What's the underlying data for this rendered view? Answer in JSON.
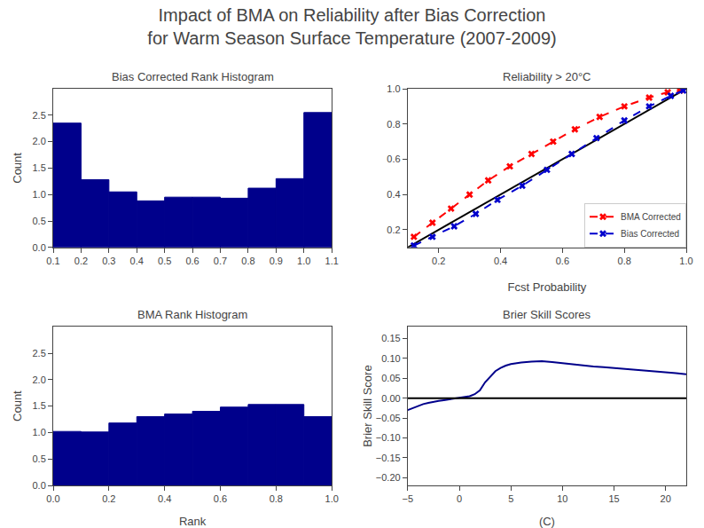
{
  "title": "Impact of BMA on Reliability after Bias Correction\nfor Warm Season Surface Temperature (2007-2009)",
  "chart_data": [
    {
      "type": "histogram",
      "title": "Bias Corrected Rank Histogram",
      "ylabel": "Count",
      "bins": [
        0.1,
        0.2,
        0.3,
        0.4,
        0.5,
        0.6,
        0.7,
        0.8,
        0.9,
        1.0,
        1.1
      ],
      "values": [
        2.35,
        1.28,
        1.05,
        0.88,
        0.95,
        0.95,
        0.93,
        1.12,
        1.3,
        2.55
      ],
      "color": "#00008B",
      "xlim": [
        0.1,
        1.1
      ],
      "ylim": [
        0,
        3.0
      ],
      "xticks": [
        0.1,
        0.2,
        0.3,
        0.4,
        0.5,
        0.6,
        0.7,
        0.8,
        0.9,
        {
          "value": 1.0,
          "label": "1.0"
        },
        1.1
      ],
      "yticks": [
        {
          "value": 0,
          "label": "0.0"
        },
        0.5,
        {
          "value": 1.0,
          "label": "1.0"
        },
        1.5,
        {
          "value": 2.0,
          "label": "2.0"
        },
        2.5
      ],
      "grid": false
    },
    {
      "type": "histogram",
      "title": "BMA Rank Histogram",
      "xlabel": "Rank",
      "ylabel": "Count",
      "bins": [
        0.0,
        0.1,
        0.2,
        0.3,
        0.4,
        0.5,
        0.6,
        0.7,
        0.8,
        0.9,
        1.0
      ],
      "values": [
        1.02,
        1.01,
        1.18,
        1.3,
        1.35,
        1.4,
        1.48,
        1.53,
        1.53,
        1.3
      ],
      "color": "#00008B",
      "xlim": [
        0.0,
        1.0
      ],
      "ylim": [
        0,
        3.0
      ],
      "xticks": [
        {
          "value": 0,
          "label": "0.0"
        },
        0.2,
        0.4,
        0.6,
        0.8,
        {
          "value": 1.0,
          "label": "1.0"
        }
      ],
      "yticks": [
        {
          "value": 0,
          "label": "0.0"
        },
        0.5,
        {
          "value": 1.0,
          "label": "1.0"
        },
        1.5,
        {
          "value": 2.0,
          "label": "2.0"
        },
        2.5
      ],
      "grid": false
    },
    {
      "type": "line",
      "title": "Reliability > 20°C",
      "xlabel": "Fcst Probability",
      "xlim": [
        0.1,
        1.0
      ],
      "ylim": [
        0.1,
        1.0
      ],
      "xticks": [
        0.2,
        0.4,
        0.6,
        0.8,
        {
          "value": 1.0,
          "label": "1.0"
        }
      ],
      "yticks": [
        0.2,
        0.4,
        0.6,
        0.8,
        {
          "value": 1.0,
          "label": "1.0"
        }
      ],
      "legend": "lower right",
      "grid": false,
      "series": [
        {
          "x": [
            0.1,
            1.0
          ],
          "values": [
            0.1,
            1.0
          ],
          "color": "#000000",
          "line_style": "solid"
        },
        {
          "name": "BMA Corrected",
          "color": "#FF0000",
          "marker": "x",
          "line_style": "dashed",
          "x": [
            0.12,
            0.18,
            0.24,
            0.3,
            0.36,
            0.43,
            0.5,
            0.57,
            0.64,
            0.72,
            0.8,
            0.88,
            0.94,
            0.98
          ],
          "values": [
            0.16,
            0.24,
            0.32,
            0.4,
            0.48,
            0.56,
            0.63,
            0.7,
            0.77,
            0.84,
            0.9,
            0.95,
            0.98,
            0.99
          ]
        },
        {
          "name": "Bias Corrected",
          "color": "#0000CD",
          "marker": "x",
          "line_style": "dashed",
          "x": [
            0.12,
            0.18,
            0.25,
            0.32,
            0.39,
            0.47,
            0.55,
            0.63,
            0.71,
            0.8,
            0.88,
            0.95,
            0.99
          ],
          "values": [
            0.11,
            0.16,
            0.22,
            0.29,
            0.37,
            0.45,
            0.54,
            0.63,
            0.72,
            0.82,
            0.9,
            0.96,
            0.99
          ]
        }
      ]
    },
    {
      "type": "line",
      "title": "Brier Skill Scores",
      "xlabel": "(C)",
      "ylabel": "Brier Skill Score",
      "xlim": [
        -5,
        22
      ],
      "ylim": [
        -0.22,
        0.18
      ],
      "xticks": [
        {
          "value": -5,
          "label": "−5"
        },
        0,
        5,
        10,
        15,
        20
      ],
      "yticks": [
        {
          "value": -0.2,
          "label": "−0.20"
        },
        {
          "value": -0.15,
          "label": "−0.15"
        },
        {
          "value": -0.1,
          "label": "−0.10"
        },
        {
          "value": -0.05,
          "label": "−0.05"
        },
        {
          "value": 0,
          "label": "0.00"
        },
        0.05,
        {
          "value": 0.1,
          "label": "0.10"
        },
        0.15
      ],
      "grid": false,
      "series": [
        {
          "color": "#00008B",
          "line_style": "solid",
          "x": [
            -5,
            -4.5,
            -4,
            -3.5,
            -3,
            -2.5,
            -2,
            -1.5,
            -1,
            -0.5,
            0,
            0.5,
            1,
            1.5,
            2,
            2.5,
            3,
            3.5,
            4,
            4.5,
            5,
            6,
            7,
            8,
            9,
            10,
            11,
            12,
            13,
            14,
            15,
            16,
            17,
            18,
            19,
            20,
            21,
            22
          ],
          "values": [
            -0.03,
            -0.025,
            -0.02,
            -0.015,
            -0.012,
            -0.009,
            -0.007,
            -0.005,
            -0.003,
            -0.001,
            0.001,
            0.003,
            0.005,
            0.01,
            0.02,
            0.04,
            0.055,
            0.068,
            0.076,
            0.082,
            0.086,
            0.09,
            0.092,
            0.093,
            0.091,
            0.088,
            0.086,
            0.082,
            0.08,
            0.078,
            0.076,
            0.074,
            0.072,
            0.07,
            0.068,
            0.065,
            0.063,
            0.06
          ]
        },
        {
          "x": [
            -5,
            22
          ],
          "values": [
            0,
            0
          ],
          "color": "#000000",
          "line_style": "solid"
        }
      ]
    }
  ]
}
